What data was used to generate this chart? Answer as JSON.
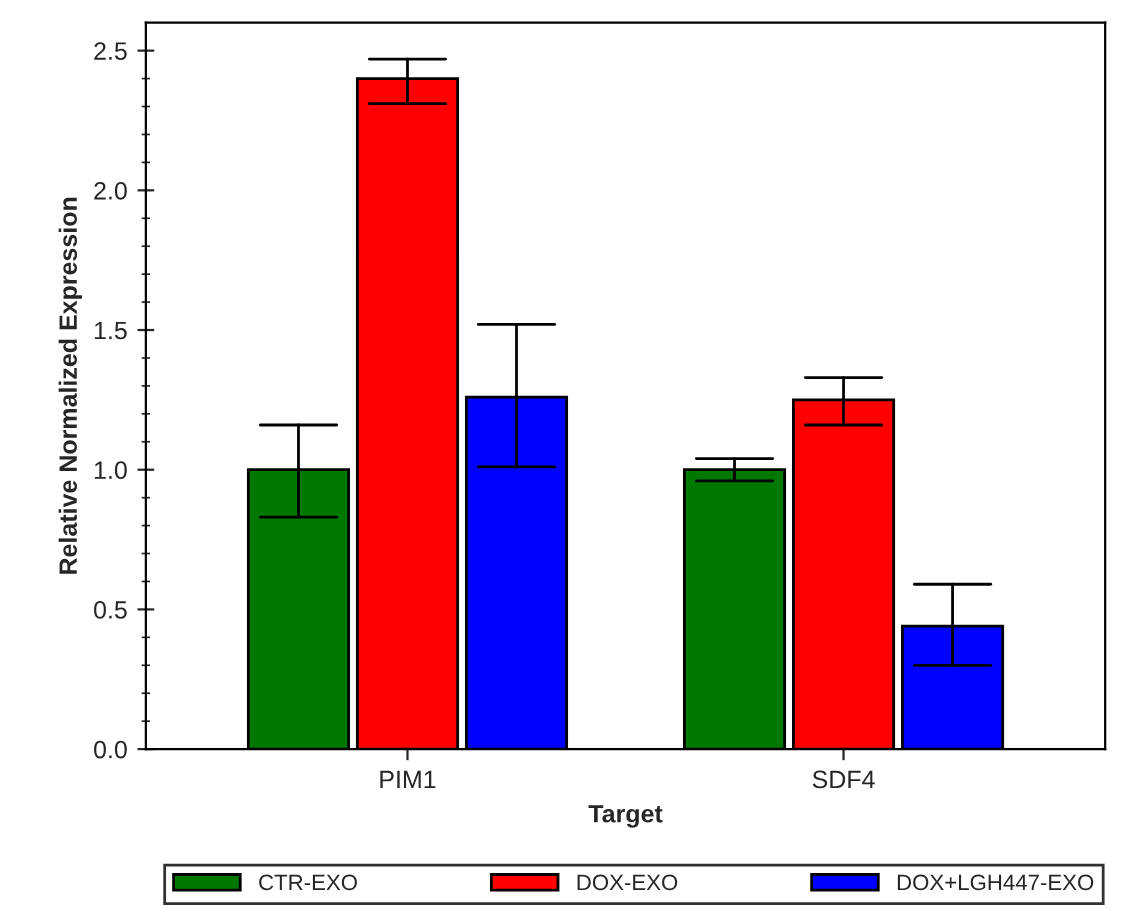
{
  "chart_data": {
    "type": "bar",
    "xlabel": "Target",
    "ylabel": "Relative Normalized Expression",
    "categories": [
      "PIM1",
      "SDF4"
    ],
    "series": [
      {
        "name": "CTR-EXO",
        "color": "#007800",
        "values": [
          1.0,
          1.0
        ],
        "errors": [
          [
            0.83,
            1.16
          ],
          [
            0.96,
            1.04
          ]
        ]
      },
      {
        "name": "DOX-EXO",
        "color": "#ff0000",
        "values": [
          2.4,
          1.25
        ],
        "errors": [
          [
            2.31,
            2.47
          ],
          [
            1.16,
            1.33
          ]
        ]
      },
      {
        "name": "DOX+LGH447-EXO",
        "color": "#0000ff",
        "values": [
          1.26,
          0.44
        ],
        "errors": [
          [
            1.01,
            1.52
          ],
          [
            0.3,
            0.59
          ]
        ]
      }
    ],
    "ylim": [
      0,
      2.6
    ],
    "yticks": [
      {
        "value": 0.0,
        "label": "0.0"
      },
      {
        "value": 0.5,
        "label": "0.5"
      },
      {
        "value": 1.0,
        "label": "1.0"
      },
      {
        "value": 1.5,
        "label": "1.5"
      },
      {
        "value": 2.0,
        "label": "2.0"
      },
      {
        "value": 2.5,
        "label": "2.5"
      },
      {
        "value": 0.1,
        "label": null
      },
      {
        "value": 0.2,
        "label": null
      },
      {
        "value": 0.3,
        "label": null
      },
      {
        "value": 0.4,
        "label": null
      },
      {
        "value": 0.6,
        "label": null
      },
      {
        "value": 0.7,
        "label": null
      },
      {
        "value": 0.8,
        "label": null
      },
      {
        "value": 0.9,
        "label": null
      },
      {
        "value": 1.1,
        "label": null
      },
      {
        "value": 1.2,
        "label": null
      },
      {
        "value": 1.3,
        "label": null
      },
      {
        "value": 1.4,
        "label": null
      },
      {
        "value": 1.6,
        "label": null
      },
      {
        "value": 1.7,
        "label": null
      },
      {
        "value": 1.8,
        "label": null
      },
      {
        "value": 1.9,
        "label": null
      },
      {
        "value": 2.1,
        "label": null
      },
      {
        "value": 2.2,
        "label": null
      },
      {
        "value": 2.3,
        "label": null
      },
      {
        "value": 2.4,
        "label": null
      }
    ],
    "grid": false,
    "legend": "bottom"
  }
}
